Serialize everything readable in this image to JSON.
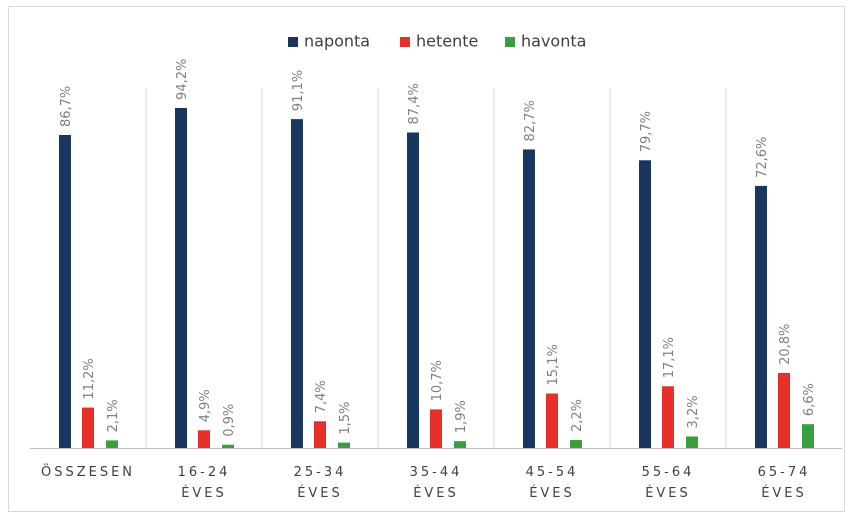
{
  "chart_data": {
    "type": "bar",
    "categories": [
      "ÖSSZESEN",
      "16-24\nÉVES",
      "25-34\nÉVES",
      "35-44\nÉVES",
      "45-54\nÉVES",
      "55-64\nÉVES",
      "65-74\nÉVES"
    ],
    "series": [
      {
        "name": "naponta",
        "color": "#17375e",
        "values": [
          86.7,
          94.2,
          91.1,
          87.4,
          82.7,
          79.7,
          72.6
        ],
        "value_labels": [
          "86,7%",
          "94,2%",
          "91,1%",
          "87,4%",
          "82,7%",
          "79,7%",
          "72,6%"
        ]
      },
      {
        "name": "hetente",
        "color": "#e8302a",
        "values": [
          11.2,
          4.9,
          7.4,
          10.7,
          15.1,
          17.1,
          20.8
        ],
        "value_labels": [
          "11,2%",
          "4,9%",
          "7,4%",
          "10,7%",
          "15,1%",
          "17,1%",
          "20,8%"
        ]
      },
      {
        "name": "havonta",
        "color": "#3a9e3e",
        "values": [
          2.1,
          0.9,
          1.5,
          1.9,
          2.2,
          3.2,
          6.6
        ],
        "value_labels": [
          "2,1%",
          "0,9%",
          "1,5%",
          "1,9%",
          "2,2%",
          "3,2%",
          "6,6%"
        ]
      }
    ],
    "legend": "top"
  }
}
